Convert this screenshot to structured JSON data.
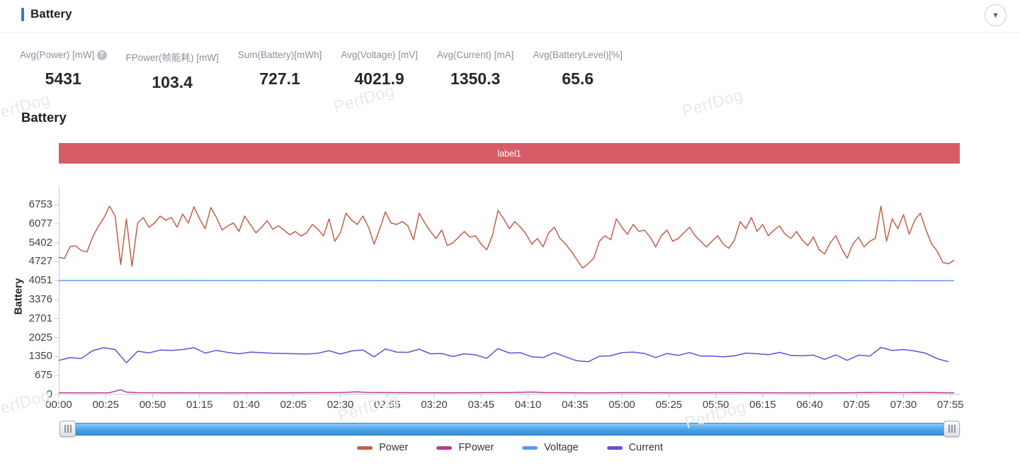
{
  "header": {
    "title": "Battery",
    "collapse_icon": "▼"
  },
  "metrics": [
    {
      "label": "Avg(Power) [mW]",
      "value": "5431",
      "has_help": true
    },
    {
      "label": "FPower(帧能耗) [mW]",
      "value": "103.4",
      "has_help": false
    },
    {
      "label": "Sum(Battery)[mWh]",
      "value": "727.1",
      "has_help": false
    },
    {
      "label": "Avg(Voltage) [mV]",
      "value": "4021.9",
      "has_help": false
    },
    {
      "label": "Avg(Current) [mA]",
      "value": "1350.3",
      "has_help": false
    },
    {
      "label": "Avg(BatteryLevel)[%]",
      "value": "65.6",
      "has_help": false
    }
  ],
  "section": {
    "title": "Battery",
    "label_bar": {
      "text": "label1",
      "color": "#d75c68"
    }
  },
  "watermark": {
    "text": "PerfDog"
  },
  "scrollbar": {
    "track_color": "#4aa2e8",
    "left_handle_icon": "grip-icon",
    "right_handle_icon": "grip-icon"
  },
  "chart_data": {
    "type": "line",
    "title": "Battery",
    "xlabel": "",
    "ylabel": "Battery",
    "x_unit": "mm:ss",
    "grid": false,
    "legend_position": "bottom",
    "ylim": [
      0,
      7090
    ],
    "y_ticks": [
      6753,
      6077,
      5402,
      4727,
      4051,
      3376,
      2701,
      2025,
      1350,
      675,
      0
    ],
    "x_ticks": [
      "00:00",
      "00:25",
      "00:50",
      "01:15",
      "01:40",
      "02:05",
      "02:30",
      "02:55",
      "03:20",
      "03:45",
      "04:10",
      "04:35",
      "05:00",
      "05:25",
      "05:50",
      "06:15",
      "06:40",
      "07:05",
      "07:30",
      "07:55"
    ],
    "x_tick_interval_seconds": 25,
    "t_max_seconds": 480,
    "series": [
      {
        "name": "Power",
        "color": "#c2604b",
        "t_start": 0,
        "t_step": 3,
        "values": [
          4880,
          4840,
          5260,
          5290,
          5120,
          5070,
          5600,
          5980,
          6280,
          6700,
          6350,
          4630,
          6250,
          4560,
          6100,
          6300,
          5950,
          6100,
          6350,
          6200,
          6300,
          5950,
          6420,
          6100,
          6680,
          6250,
          5900,
          6650,
          6300,
          5850,
          6000,
          6100,
          5800,
          6350,
          6050,
          5750,
          5950,
          6180,
          5880,
          6000,
          5850,
          5680,
          5800,
          5640,
          5750,
          6050,
          5880,
          5640,
          6250,
          5450,
          5750,
          6450,
          6200,
          6050,
          6350,
          5950,
          5350,
          5900,
          6500,
          6100,
          6050,
          6150,
          6000,
          5500,
          6450,
          6100,
          5800,
          5550,
          5850,
          5300,
          5400,
          5600,
          5800,
          5600,
          5650,
          5350,
          5150,
          5650,
          6550,
          6250,
          5900,
          6150,
          5950,
          5700,
          5350,
          5550,
          5250,
          5750,
          5950,
          5550,
          5350,
          5100,
          4800,
          4500,
          4650,
          4850,
          5450,
          5650,
          5500,
          6250,
          5950,
          5700,
          6050,
          5800,
          5850,
          5600,
          5250,
          5650,
          5850,
          5450,
          5550,
          5750,
          5950,
          5650,
          5450,
          5250,
          5450,
          5650,
          5350,
          5200,
          5500,
          6150,
          5900,
          6300,
          5800,
          6050,
          5650,
          5850,
          6000,
          5700,
          5550,
          5800,
          5500,
          5300,
          5600,
          5150,
          5000,
          5400,
          5650,
          5200,
          4850,
          5350,
          5600,
          5250,
          5450,
          5550,
          6700,
          5450,
          6250,
          5900,
          6400,
          5700,
          6200,
          6450,
          5850,
          5350,
          5100,
          4700,
          4650,
          4780
        ]
      },
      {
        "name": "FPower",
        "color": "#b93a9c",
        "points": [
          [
            0,
            62
          ],
          [
            15,
            60
          ],
          [
            27,
            64
          ],
          [
            33,
            168
          ],
          [
            36,
            85
          ],
          [
            42,
            66
          ],
          [
            60,
            62
          ],
          [
            90,
            60
          ],
          [
            120,
            64
          ],
          [
            150,
            70
          ],
          [
            159,
            92
          ],
          [
            165,
            74
          ],
          [
            180,
            66
          ],
          [
            210,
            62
          ],
          [
            240,
            70
          ],
          [
            252,
            88
          ],
          [
            258,
            70
          ],
          [
            285,
            60
          ],
          [
            300,
            66
          ],
          [
            330,
            62
          ],
          [
            360,
            66
          ],
          [
            390,
            60
          ],
          [
            420,
            63
          ],
          [
            435,
            72
          ],
          [
            450,
            66
          ],
          [
            462,
            74
          ],
          [
            477,
            60
          ]
        ]
      },
      {
        "name": "Voltage",
        "color": "#5c9ce6",
        "points": [
          [
            0,
            4058
          ],
          [
            60,
            4056
          ],
          [
            120,
            4055
          ],
          [
            180,
            4053
          ],
          [
            240,
            4052
          ],
          [
            300,
            4051
          ],
          [
            360,
            4050
          ],
          [
            420,
            4049
          ],
          [
            477,
            4048
          ]
        ]
      },
      {
        "name": "Current",
        "color": "#6b4ed2",
        "t_start": 0,
        "t_step": 6,
        "values": [
          1215,
          1310,
          1282,
          1560,
          1665,
          1600,
          1130,
          1540,
          1480,
          1580,
          1570,
          1600,
          1665,
          1475,
          1570,
          1500,
          1450,
          1510,
          1490,
          1470,
          1460,
          1450,
          1440,
          1470,
          1560,
          1440,
          1550,
          1585,
          1340,
          1620,
          1510,
          1500,
          1610,
          1450,
          1460,
          1350,
          1450,
          1410,
          1290,
          1635,
          1475,
          1490,
          1340,
          1315,
          1490,
          1340,
          1200,
          1165,
          1360,
          1375,
          1490,
          1510,
          1460,
          1315,
          1460,
          1390,
          1490,
          1365,
          1365,
          1340,
          1375,
          1475,
          1450,
          1415,
          1500,
          1390,
          1375,
          1400,
          1250,
          1410,
          1215,
          1400,
          1365,
          1675,
          1565,
          1600,
          1550,
          1465,
          1275,
          1165
        ]
      }
    ]
  }
}
